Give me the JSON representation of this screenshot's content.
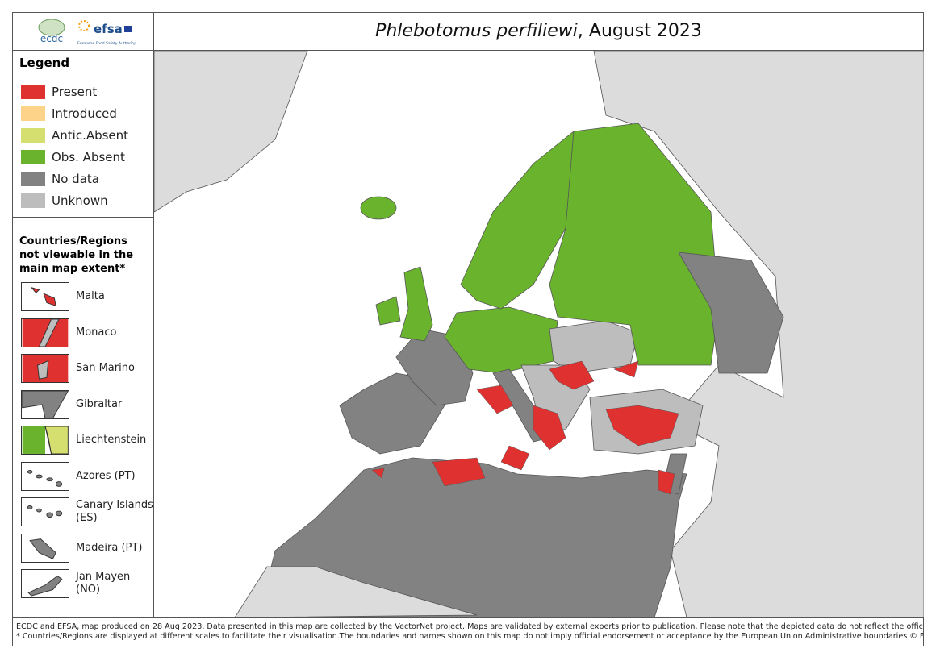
{
  "logos": {
    "ecdc": "ecdc",
    "efsa": "efsa",
    "efsa_sub": "European Food Safety Authority"
  },
  "title": {
    "species": "Phlebotomus perfiliewi",
    "date": ", August 2023"
  },
  "legend": {
    "title": "Legend",
    "items": [
      {
        "label": "Present",
        "color": "#e03131"
      },
      {
        "label": "Introduced",
        "color": "#fdd38a"
      },
      {
        "label": "Antic.Absent",
        "color": "#d5df6f"
      },
      {
        "label": "Obs. Absent",
        "color": "#6ab42d"
      },
      {
        "label": "No data",
        "color": "#828282"
      },
      {
        "label": "Unknown",
        "color": "#bdbdbd"
      }
    ]
  },
  "regions": {
    "title": "Countries/Regions not viewable in the main map extent*",
    "items": [
      "Malta",
      "Monaco",
      "San Marino",
      "Gibraltar",
      "Liechtenstein",
      "Azores (PT)",
      "Canary Islands (ES)",
      "Madeira (PT)",
      "Jan Mayen (NO)"
    ]
  },
  "footer": [
    "ECDC and EFSA, map produced on 28 Aug 2023. Data presented in this map are collected by the VectorNet project. Maps are validated by external experts prior to publication. Please note that the depicted data do not reflect the official views of the countries.",
    "* Countries/Regions are displayed at different scales to facilitate their visualisation.The boundaries and names shown on this map do not imply official endorsement or acceptance by the European Union.Administrative boundaries © EuroGeographics, UNFAO."
  ]
}
